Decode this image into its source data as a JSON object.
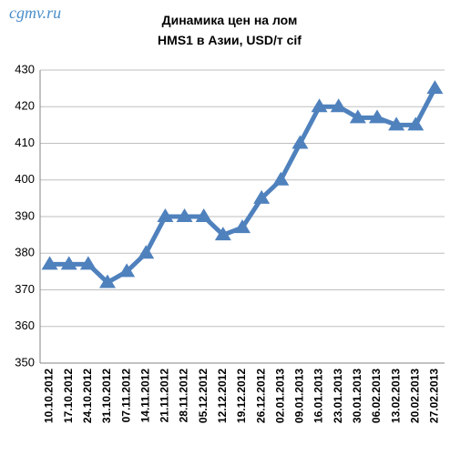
{
  "chart_data": {
    "type": "line",
    "watermark": "cgmv.ru",
    "title": [
      "Динамика цен на лом",
      "HMS1 в Азии, USD/т cif"
    ],
    "categories": [
      "10.10.2012",
      "17.10.2012",
      "24.10.2012",
      "31.10.2012",
      "07.11.2012",
      "14.11.2012",
      "21.11.2012",
      "28.11.2012",
      "05.12.2012",
      "12.12.2012",
      "19.12.2012",
      "26.12.2012",
      "02.01.2013",
      "09.01.2013",
      "16.01.2013",
      "23.01.2013",
      "30.01.2013",
      "06.02.2013",
      "13.02.2013",
      "20.02.2013",
      "27.02.2013"
    ],
    "values": [
      377,
      377,
      377,
      372,
      375,
      380,
      390,
      390,
      390,
      385,
      387,
      395,
      400,
      410,
      420,
      420,
      417,
      417,
      415,
      415,
      425
    ],
    "color": "#4f81bd",
    "ylim": [
      350,
      430
    ],
    "yticks": [
      350,
      360,
      370,
      380,
      390,
      400,
      410,
      420,
      430
    ],
    "grid": true
  }
}
